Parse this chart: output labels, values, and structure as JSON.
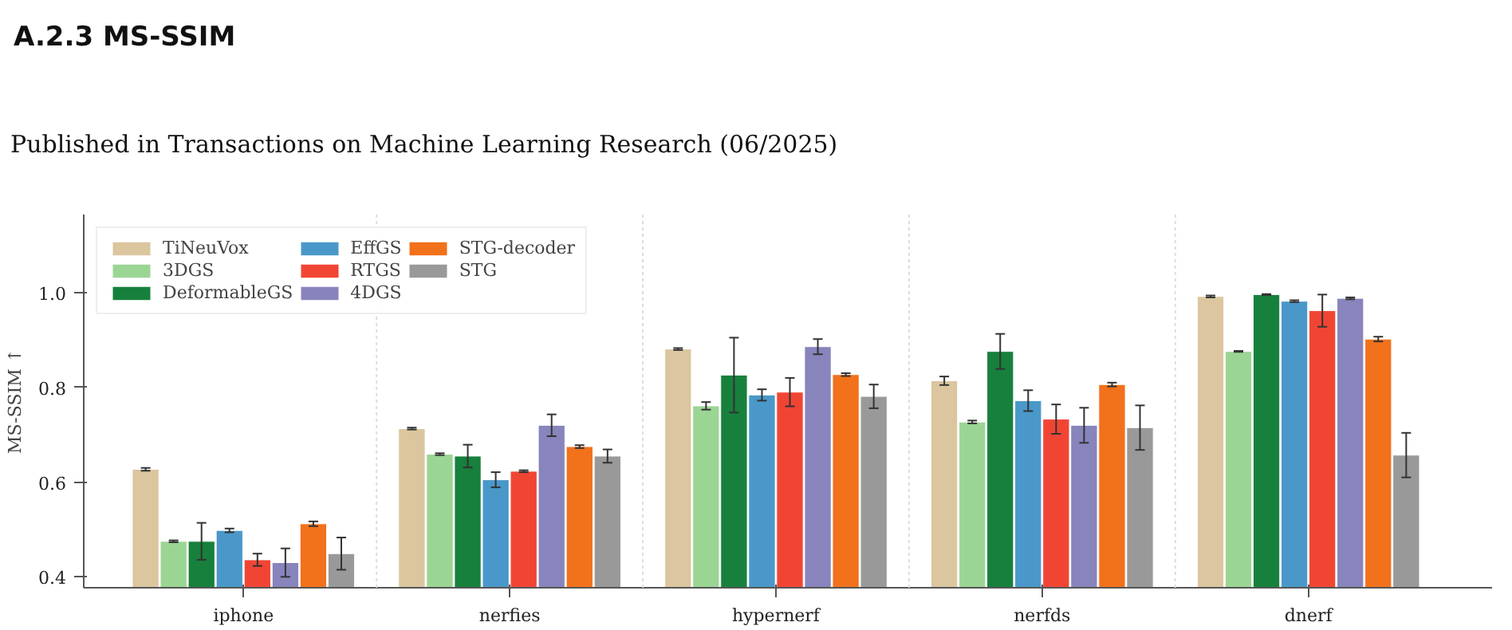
{
  "chart_data": {
    "type": "bar",
    "title": "A.2.3    MS-SSIM",
    "annotations": [
      "Published in Transactions on Machine Learning Research (06/2025)"
    ],
    "ylabel": "MS-SSIM ↑",
    "categories": [
      "iphone",
      "nerfies",
      "hypernerf",
      "nerfds",
      "dnerf"
    ],
    "ylim": [
      0.377,
      1.165
    ],
    "yticks": [
      {
        "value": 0.4,
        "label": "0.4"
      },
      {
        "value": 0.6,
        "label": "0.6"
      },
      {
        "value": 0.8,
        "label": "0.8"
      },
      {
        "value": 1.0,
        "label": "1.0"
      }
    ],
    "grid": "x",
    "legend": "top left",
    "series": [
      {
        "name": "TiNeuVox",
        "color": "#dbc69f",
        "values": [
          0.627,
          0.713,
          0.881,
          0.814,
          0.992
        ],
        "errors": [
          0.003,
          0.002,
          0.002,
          0.009,
          0.002
        ]
      },
      {
        "name": "3DGS",
        "color": "#9bd594",
        "values": [
          0.475,
          0.659,
          0.761,
          0.727,
          0.876
        ],
        "errors": [
          0.002,
          0.002,
          0.008,
          0.003,
          0.001
        ]
      },
      {
        "name": "DeformableGS",
        "color": "#17803c",
        "values": [
          0.475,
          0.655,
          0.826,
          0.876,
          0.996
        ],
        "errors": [
          0.039,
          0.024,
          0.079,
          0.037,
          0.001
        ]
      },
      {
        "name": "EffGS",
        "color": "#4a98c9",
        "values": [
          0.498,
          0.605,
          0.784,
          0.772,
          0.982
        ],
        "errors": [
          0.004,
          0.016,
          0.012,
          0.022,
          0.002
        ]
      },
      {
        "name": "RTGS",
        "color": "#f14534",
        "values": [
          0.436,
          0.623,
          0.79,
          0.733,
          0.962
        ],
        "errors": [
          0.013,
          0.002,
          0.03,
          0.031,
          0.034
        ]
      },
      {
        "name": "4DGS",
        "color": "#8884bc",
        "values": [
          0.43,
          0.72,
          0.886,
          0.72,
          0.988
        ],
        "errors": [
          0.03,
          0.023,
          0.016,
          0.037,
          0.002
        ]
      },
      {
        "name": "STG-decoder",
        "color": "#f2711b",
        "values": [
          0.512,
          0.675,
          0.827,
          0.806,
          0.902
        ],
        "errors": [
          0.005,
          0.003,
          0.003,
          0.004,
          0.005
        ]
      },
      {
        "name": "STG",
        "color": "#999999",
        "values": [
          0.449,
          0.655,
          0.781,
          0.715,
          0.657
        ],
        "errors": [
          0.034,
          0.014,
          0.025,
          0.047,
          0.047
        ]
      }
    ]
  }
}
